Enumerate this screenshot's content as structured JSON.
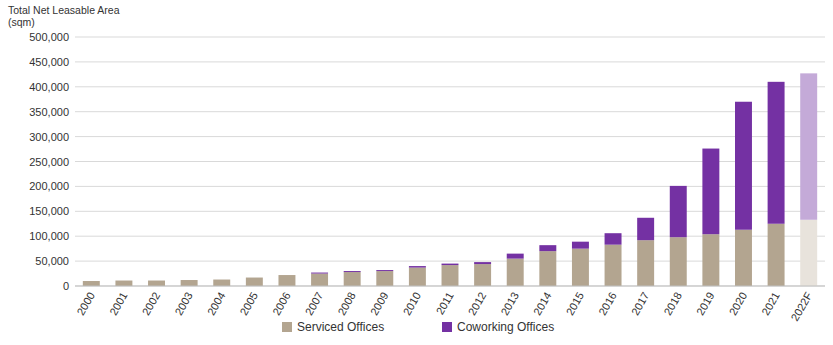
{
  "chart_data": {
    "type": "bar",
    "ylabel": "Total Net Leasable Area (sqm)",
    "categories": [
      "2000",
      "2001",
      "2002",
      "2003",
      "2004",
      "2005",
      "2006",
      "2007",
      "2008",
      "2009",
      "2010",
      "2011",
      "2012",
      "2013",
      "2014",
      "2015",
      "2016",
      "2017",
      "2018",
      "2019",
      "2020",
      "2021",
      "2022F"
    ],
    "series": [
      {
        "name": "Serviced Offices",
        "color": "#b3a590",
        "colors": [
          "#b3a590",
          "#b3a590",
          "#b3a590",
          "#b3a590",
          "#b3a590",
          "#b3a590",
          "#b3a590",
          "#b3a590",
          "#b3a590",
          "#b3a590",
          "#b3a590",
          "#b3a590",
          "#b3a590",
          "#b3a590",
          "#b3a590",
          "#b3a590",
          "#b3a590",
          "#b3a590",
          "#b3a590",
          "#b3a590",
          "#b3a590",
          "#b3a590",
          "#e8e3dc"
        ],
        "values": [
          10000,
          11000,
          11000,
          12000,
          13000,
          17000,
          22000,
          25000,
          28000,
          30000,
          37000,
          42000,
          44000,
          55000,
          70000,
          75000,
          83000,
          92000,
          98000,
          104000,
          113000,
          125000,
          133000
        ]
      },
      {
        "name": "Coworking Offices",
        "color": "#7431a3",
        "colors": [
          "#7431a3",
          "#7431a3",
          "#7431a3",
          "#7431a3",
          "#7431a3",
          "#7431a3",
          "#7431a3",
          "#7431a3",
          "#7431a3",
          "#7431a3",
          "#7431a3",
          "#7431a3",
          "#7431a3",
          "#7431a3",
          "#7431a3",
          "#7431a3",
          "#7431a3",
          "#7431a3",
          "#7431a3",
          "#7431a3",
          "#7431a3",
          "#7431a3",
          "#c4aad8"
        ],
        "values": [
          0,
          0,
          0,
          0,
          0,
          0,
          0,
          2000,
          2000,
          2000,
          3000,
          3000,
          4000,
          10000,
          12000,
          14000,
          23000,
          45000,
          103000,
          172000,
          257000,
          285000,
          294000
        ]
      }
    ],
    "stacked": true,
    "grid": true,
    "legend": "bottom",
    "ylim": [
      0,
      500000
    ],
    "yticks": [
      0,
      {
        "value": 50000,
        "label": "50,000"
      },
      {
        "value": 100000,
        "label": "100,000"
      },
      {
        "value": 150000,
        "label": "150,000"
      },
      {
        "value": 200000,
        "label": "200,000"
      },
      {
        "value": 250000,
        "label": "250,000"
      },
      {
        "value": 300000,
        "label": "300,000"
      },
      {
        "value": 350000,
        "label": "350,000"
      },
      {
        "value": 400000,
        "label": "400,000"
      },
      {
        "value": 450000,
        "label": "450,000"
      },
      {
        "value": 500000,
        "label": "500,000"
      }
    ]
  }
}
